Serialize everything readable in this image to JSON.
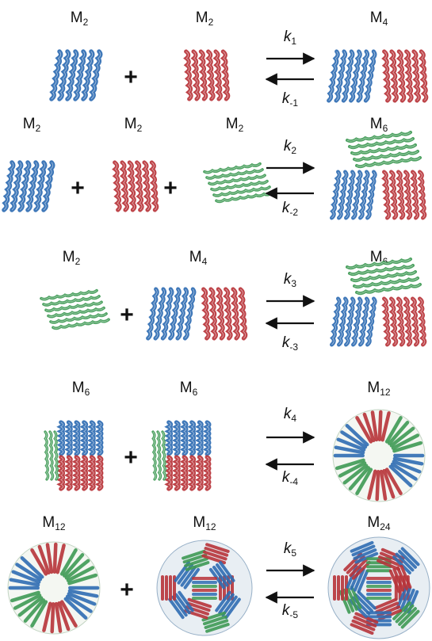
{
  "colors": {
    "blue": "#2f6db3",
    "red": "#b8343a",
    "green": "#3f9a55",
    "light_blue": "#5b8fcf",
    "arrow": "#111111"
  },
  "plus_sign": "+",
  "rows": [
    {
      "reactants": [
        {
          "label": "M",
          "sub": "2",
          "structure": "blue-helix-bundle"
        },
        {
          "label": "M",
          "sub": "2",
          "structure": "red-helix-bundle"
        }
      ],
      "forward_rate": {
        "symbol": "k",
        "sub": "1"
      },
      "reverse_rate": {
        "symbol": "k",
        "sub": "-1"
      },
      "product": {
        "label": "M",
        "sub": "4",
        "structure": "blue-red-complex"
      }
    },
    {
      "reactants": [
        {
          "label": "M",
          "sub": "2",
          "structure": "blue-helix-bundle"
        },
        {
          "label": "M",
          "sub": "2",
          "structure": "red-helix-bundle"
        },
        {
          "label": "M",
          "sub": "2",
          "structure": "green-helix-bundle"
        }
      ],
      "forward_rate": {
        "symbol": "k",
        "sub": "2"
      },
      "reverse_rate": {
        "symbol": "k",
        "sub": "-2"
      },
      "product": {
        "label": "M",
        "sub": "6",
        "structure": "blue-red-green-complex"
      }
    },
    {
      "reactants": [
        {
          "label": "M",
          "sub": "2",
          "structure": "green-helix-bundle"
        },
        {
          "label": "M",
          "sub": "4",
          "structure": "blue-red-complex"
        }
      ],
      "forward_rate": {
        "symbol": "k",
        "sub": "3"
      },
      "reverse_rate": {
        "symbol": "k",
        "sub": "-3"
      },
      "product": {
        "label": "M",
        "sub": "6",
        "structure": "blue-red-green-complex"
      }
    },
    {
      "reactants": [
        {
          "label": "M",
          "sub": "6",
          "structure": "hexamer-side-view"
        },
        {
          "label": "M",
          "sub": "6",
          "structure": "hexamer-side-view"
        }
      ],
      "forward_rate": {
        "symbol": "k",
        "sub": "4"
      },
      "reverse_rate": {
        "symbol": "k",
        "sub": "-4"
      },
      "product": {
        "label": "M",
        "sub": "12",
        "structure": "dodecamer-ring"
      }
    },
    {
      "reactants": [
        {
          "label": "M",
          "sub": "12",
          "structure": "dodecamer-ring"
        },
        {
          "label": "M",
          "sub": "12",
          "structure": "dodecamer-sphere"
        }
      ],
      "forward_rate": {
        "symbol": "k",
        "sub": "5"
      },
      "reverse_rate": {
        "symbol": "k",
        "sub": "-5"
      },
      "product": {
        "label": "M",
        "sub": "24",
        "structure": "24-mer-sphere"
      }
    }
  ]
}
